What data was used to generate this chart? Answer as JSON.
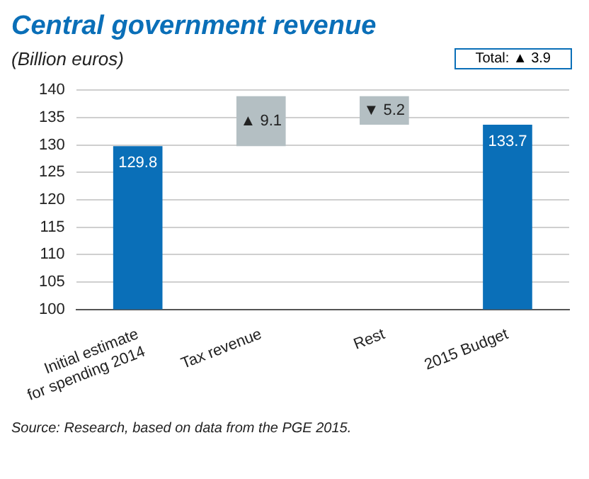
{
  "chart_data": {
    "type": "bar",
    "title": "Central government revenue",
    "subtitle": "(Billion euros)",
    "categories": [
      "Initial estimate\nfor spending 2014",
      "Tax revenue",
      "Rest",
      "2015 Budget"
    ],
    "values": [
      129.8,
      9.1,
      -5.2,
      133.7
    ],
    "base": [
      null,
      129.8,
      138.9,
      null
    ],
    "colors": [
      "#0a6fb8",
      "#b4bfc3",
      "#b4bfc3",
      "#0a6fb8"
    ],
    "value_labels": [
      "129.8",
      "▲ 9.1",
      "▼ 5.2",
      "133.7"
    ],
    "ylim": [
      100,
      140
    ],
    "yticks": [
      100,
      105,
      110,
      115,
      120,
      125,
      130,
      135,
      140
    ],
    "grid": "y",
    "legend": false,
    "annotations": [
      "Total: ▲ 3.9",
      "Source: Research, based on data from the PGE 2015."
    ]
  }
}
